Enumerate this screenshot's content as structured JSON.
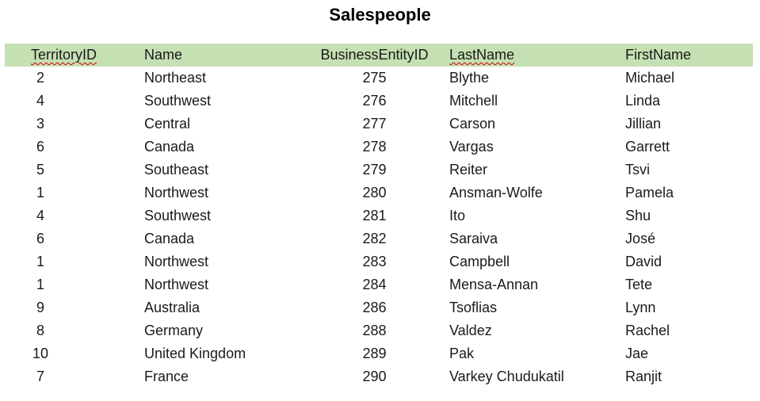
{
  "title": "Salespeople",
  "table": {
    "header_color": "#c5e0b3",
    "columns": [
      "TerritoryID",
      "Name",
      "BusinessEntityID",
      "LastName",
      "FirstName"
    ],
    "spellcheck_flagged_columns": [
      "TerritoryID",
      "LastName"
    ],
    "rows": [
      {
        "territory_id": "2",
        "name": "Northeast",
        "business_entity_id": "275",
        "last_name": "Blythe",
        "first_name": "Michael"
      },
      {
        "territory_id": "4",
        "name": "Southwest",
        "business_entity_id": "276",
        "last_name": "Mitchell",
        "first_name": "Linda"
      },
      {
        "territory_id": "3",
        "name": "Central",
        "business_entity_id": "277",
        "last_name": "Carson",
        "first_name": "Jillian"
      },
      {
        "territory_id": "6",
        "name": "Canada",
        "business_entity_id": "278",
        "last_name": "Vargas",
        "first_name": "Garrett"
      },
      {
        "territory_id": "5",
        "name": "Southeast",
        "business_entity_id": "279",
        "last_name": "Reiter",
        "first_name": "Tsvi"
      },
      {
        "territory_id": "1",
        "name": "Northwest",
        "business_entity_id": "280",
        "last_name": "Ansman-Wolfe",
        "first_name": "Pamela"
      },
      {
        "territory_id": "4",
        "name": "Southwest",
        "business_entity_id": "281",
        "last_name": "Ito",
        "first_name": "Shu"
      },
      {
        "territory_id": "6",
        "name": "Canada",
        "business_entity_id": "282",
        "last_name": "Saraiva",
        "first_name": "José"
      },
      {
        "territory_id": "1",
        "name": "Northwest",
        "business_entity_id": "283",
        "last_name": "Campbell",
        "first_name": "David"
      },
      {
        "territory_id": "1",
        "name": "Northwest",
        "business_entity_id": "284",
        "last_name": "Mensa-Annan",
        "first_name": "Tete"
      },
      {
        "territory_id": "9",
        "name": "Australia",
        "business_entity_id": "286",
        "last_name": "Tsoflias",
        "first_name": "Lynn"
      },
      {
        "territory_id": "8",
        "name": "Germany",
        "business_entity_id": "288",
        "last_name": "Valdez",
        "first_name": "Rachel"
      },
      {
        "territory_id": "10",
        "name": "United Kingdom",
        "business_entity_id": "289",
        "last_name": "Pak",
        "first_name": "Jae"
      },
      {
        "territory_id": "7",
        "name": "France",
        "business_entity_id": "290",
        "last_name": "Varkey Chudukatil",
        "first_name": "Ranjit"
      }
    ]
  }
}
